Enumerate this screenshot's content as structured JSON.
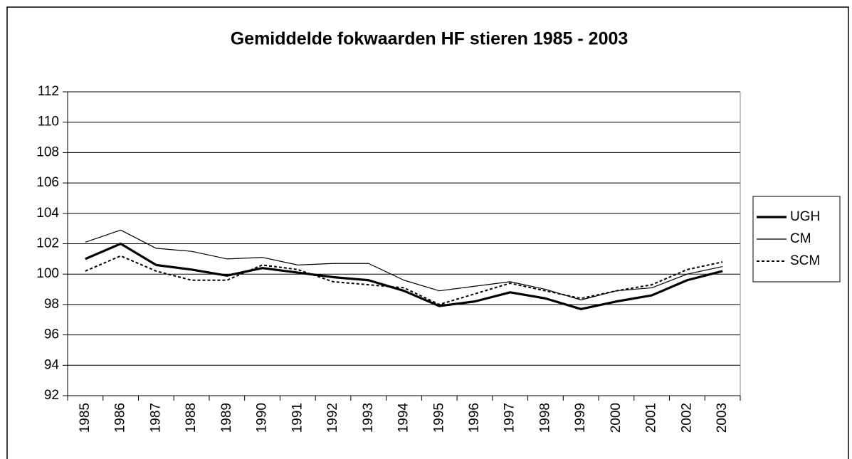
{
  "chart_data": {
    "type": "line",
    "title": "Gemiddelde fokwaarden HF stieren 1985 - 2003",
    "categories": [
      "1985",
      "1986",
      "1987",
      "1988",
      "1989",
      "1990",
      "1991",
      "1992",
      "1993",
      "1994",
      "1995",
      "1996",
      "1997",
      "1998",
      "1999",
      "2000",
      "2001",
      "2002",
      "2003"
    ],
    "series": [
      {
        "name": "UGH",
        "color": "#000000",
        "line_style": "thick",
        "values": [
          101.0,
          102.0,
          100.6,
          100.3,
          99.9,
          100.4,
          100.1,
          99.8,
          99.6,
          98.9,
          97.9,
          98.2,
          98.8,
          98.4,
          97.7,
          98.2,
          98.6,
          99.6,
          100.2
        ]
      },
      {
        "name": "CM",
        "color": "#000000",
        "line_style": "thin",
        "values": [
          102.1,
          102.9,
          101.7,
          101.5,
          101.0,
          101.1,
          100.6,
          100.7,
          100.7,
          99.6,
          98.9,
          99.2,
          99.5,
          99.0,
          98.3,
          98.9,
          99.1,
          100.0,
          100.5
        ]
      },
      {
        "name": "SCM",
        "color": "#000000",
        "line_style": "dotted",
        "values": [
          100.2,
          101.2,
          100.2,
          99.6,
          99.6,
          100.6,
          100.3,
          99.5,
          99.3,
          99.1,
          98.0,
          98.7,
          99.4,
          98.9,
          98.4,
          98.9,
          99.3,
          100.3,
          100.8
        ]
      }
    ],
    "ylim": [
      92,
      112
    ],
    "yticks": [
      92,
      94,
      96,
      98,
      100,
      102,
      104,
      106,
      108,
      110,
      112
    ],
    "grid": true,
    "legend": "right"
  }
}
